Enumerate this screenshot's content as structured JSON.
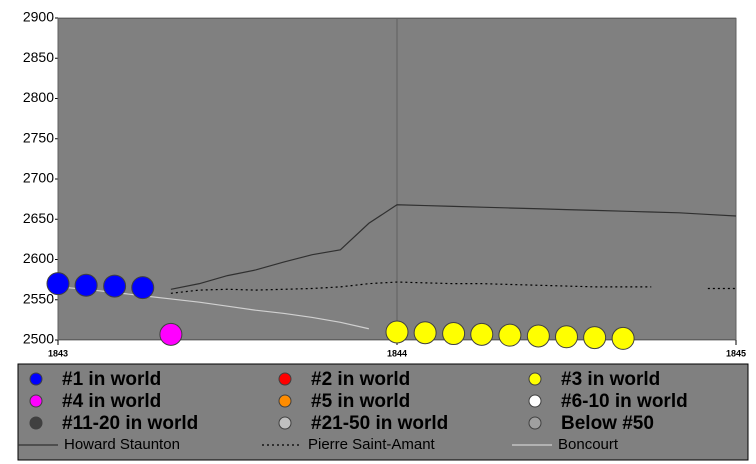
{
  "chart_data": {
    "type": "line",
    "x": [
      1843,
      1843.083,
      1843.167,
      1843.25,
      1843.333,
      1843.417,
      1843.5,
      1843.583,
      1843.667,
      1843.75,
      1843.833,
      1843.917,
      1844,
      1844.083,
      1844.167,
      1844.25,
      1844.333,
      1844.417,
      1844.5,
      1844.583,
      1844.667,
      1844.75,
      1844.833,
      1844.917,
      1845
    ],
    "series": [
      {
        "name": "Howard Staunton",
        "color": "#303030",
        "style": "solid",
        "values": [
          null,
          null,
          null,
          null,
          2563,
          2570,
          2580,
          2587,
          2597,
          2606,
          2612,
          2645,
          2668,
          2667,
          2666,
          2665,
          2664,
          2663,
          2662,
          2661,
          2660,
          2659,
          2658,
          2656,
          2654
        ]
      },
      {
        "name": "Pierre Saint-Amant",
        "color": "#000000",
        "style": "dotted",
        "values": [
          null,
          null,
          null,
          null,
          2558,
          2562,
          2563,
          2562,
          2563,
          2564,
          2566,
          2570,
          2572,
          2571,
          2570,
          2570,
          2569,
          2568,
          2567,
          2566,
          2566,
          2566,
          null,
          2564,
          2564
        ]
      },
      {
        "name": "Boncourt",
        "color": "#d0d0d0",
        "style": "solid",
        "values": [
          2566,
          2563,
          2559,
          2555,
          2551,
          2547,
          2542,
          2537,
          2533,
          2528,
          2522,
          2514,
          null,
          null,
          null,
          null,
          null,
          null,
          null,
          null,
          null,
          null,
          null,
          null,
          null
        ]
      }
    ],
    "markers": {
      "x": [
        1843,
        1843.083,
        1843.167,
        1843.25,
        1843.333,
        1844,
        1844.083,
        1844.167,
        1844.25,
        1844.333,
        1844.417,
        1844.5,
        1844.583,
        1844.667
      ],
      "values": [
        2570,
        2568,
        2567,
        2565,
        2507,
        2510,
        2509,
        2508,
        2507,
        2506,
        2505,
        2504,
        2503,
        2502
      ],
      "colors": [
        "#0000ff",
        "#0000ff",
        "#0000ff",
        "#0000ff",
        "#ff00ff",
        "#ffff00",
        "#ffff00",
        "#ffff00",
        "#ffff00",
        "#ffff00",
        "#ffff00",
        "#ffff00",
        "#ffff00",
        "#ffff00"
      ]
    },
    "rank_legend": [
      {
        "label": "#1 in world",
        "color": "#0000ff"
      },
      {
        "label": "#2 in world",
        "color": "#ff0000"
      },
      {
        "label": "#3 in world",
        "color": "#ffff00"
      },
      {
        "label": "#4 in world",
        "color": "#ff00ff"
      },
      {
        "label": "#5 in world",
        "color": "#ff8c00"
      },
      {
        "label": "#6-10 in world",
        "color": "#ffffff"
      },
      {
        "label": "#11-20 in world",
        "color": "#404040"
      },
      {
        "label": "#21-50 in world",
        "color": "#c0c0c0"
      },
      {
        "label": "Below #50",
        "color": "#a0a0a0"
      }
    ],
    "xlim": [
      1843,
      1845
    ],
    "xticks": [
      1843,
      1844,
      1845
    ],
    "ylim": [
      2500,
      2900
    ],
    "yticks": [
      2500,
      2550,
      2600,
      2650,
      2700,
      2750,
      2800,
      2850,
      2900
    ],
    "grid": "x",
    "plot_color": "#808080"
  }
}
